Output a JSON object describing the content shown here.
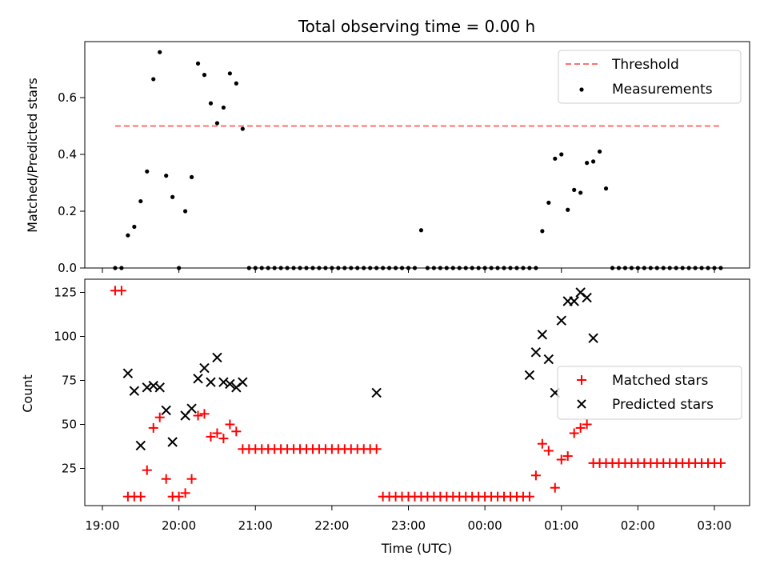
{
  "chart_data": [
    {
      "type": "scatter",
      "title": "Total observing time = 0.00 h",
      "xlabel": "",
      "ylabel": "Matched/Predicted stars",
      "xlim": [
        "19:00",
        "03:00"
      ],
      "ylim": [
        0,
        0.8
      ],
      "yticks": [
        "0.0",
        "0.2",
        "0.4",
        "0.6"
      ],
      "x_tick_labels_shown": false,
      "legend": {
        "placement": "top-right",
        "entries": [
          "Threshold",
          "Measurements"
        ]
      },
      "threshold": {
        "name": "Threshold",
        "value": 0.5,
        "x_start": "19:10",
        "x_end": "03:05",
        "color": "#ff7070"
      },
      "series": [
        {
          "name": "Measurements",
          "color": "#000000",
          "x": [
            "19:10",
            "19:15",
            "19:20",
            "19:25",
            "19:30",
            "19:35",
            "19:40",
            "19:45",
            "19:50",
            "19:55",
            "20:00",
            "20:05",
            "20:10",
            "20:15",
            "20:20",
            "20:25",
            "20:30",
            "20:35",
            "20:40",
            "20:45",
            "20:50",
            "20:55",
            "21:00",
            "21:05",
            "21:10",
            "21:15",
            "21:20",
            "21:25",
            "21:30",
            "21:35",
            "21:40",
            "21:45",
            "21:50",
            "21:55",
            "22:00",
            "22:05",
            "22:10",
            "22:15",
            "22:20",
            "22:25",
            "22:30",
            "22:35",
            "22:40",
            "22:45",
            "22:50",
            "22:55",
            "23:00",
            "23:05",
            "23:10",
            "23:15",
            "23:20",
            "23:25",
            "23:30",
            "23:35",
            "23:40",
            "23:45",
            "23:50",
            "23:55",
            "00:00",
            "00:05",
            "00:10",
            "00:15",
            "00:20",
            "00:25",
            "00:30",
            "00:35",
            "00:40",
            "00:45",
            "00:50",
            "00:55",
            "01:00",
            "01:05",
            "01:10",
            "01:15",
            "01:20",
            "01:25",
            "01:30",
            "01:35",
            "01:40",
            "01:45",
            "01:50",
            "01:55",
            "02:00",
            "02:05",
            "02:10",
            "02:15",
            "02:20",
            "02:25",
            "02:30",
            "02:35",
            "02:40",
            "02:45",
            "02:50",
            "02:55",
            "03:00",
            "03:05"
          ],
          "y": [
            0,
            0,
            0.115,
            0.145,
            0.235,
            0.34,
            0.665,
            0.76,
            0.325,
            0.25,
            0,
            0.2,
            0.32,
            0.72,
            0.68,
            0.58,
            0.51,
            0.565,
            0.685,
            0.65,
            0.49,
            0,
            0,
            0,
            0,
            0,
            0,
            0,
            0,
            0,
            0,
            0,
            0,
            0,
            0,
            0,
            0,
            0,
            0,
            0,
            0,
            0,
            0,
            0,
            0,
            0,
            0,
            0,
            0.133,
            0,
            0,
            0,
            0,
            0,
            0,
            0,
            0,
            0,
            0,
            0,
            0,
            0,
            0,
            0,
            0,
            0,
            0,
            0.13,
            0.23,
            0.385,
            0.4,
            0.205,
            0.275,
            0.265,
            0.37,
            0.375,
            0.41,
            0.28,
            0,
            0,
            0,
            0,
            0,
            0,
            0,
            0,
            0,
            0,
            0,
            0,
            0,
            0,
            0,
            0,
            0,
            0
          ]
        }
      ]
    },
    {
      "type": "scatter",
      "title": "",
      "xlabel": "Time (UTC)",
      "ylabel": "Count",
      "xlim": [
        "19:00",
        "03:00"
      ],
      "ylim": [
        3,
        132
      ],
      "xticks": [
        "19:00",
        "20:00",
        "21:00",
        "22:00",
        "23:00",
        "00:00",
        "01:00",
        "02:00",
        "03:00"
      ],
      "yticks": [
        "25",
        "50",
        "75",
        "100",
        "125"
      ],
      "legend": {
        "placement": "center-right",
        "entries": [
          "Matched stars",
          "Predicted stars"
        ]
      },
      "series": [
        {
          "name": "Matched stars",
          "marker": "plus",
          "color": "#ff0000",
          "x": [
            "19:10",
            "19:15",
            "19:20",
            "19:25",
            "19:30",
            "19:35",
            "19:40",
            "19:45",
            "19:50",
            "19:55",
            "20:00",
            "20:05",
            "20:10",
            "20:15",
            "20:20",
            "20:25",
            "20:30",
            "20:35",
            "20:40",
            "20:45",
            "20:50",
            "20:55",
            "21:00",
            "21:05",
            "21:10",
            "21:15",
            "21:20",
            "21:25",
            "21:30",
            "21:35",
            "21:40",
            "21:45",
            "21:50",
            "21:55",
            "22:00",
            "22:05",
            "22:10",
            "22:15",
            "22:20",
            "22:25",
            "22:30",
            "22:35",
            "22:40",
            "22:45",
            "22:50",
            "22:55",
            "23:00",
            "23:05",
            "23:10",
            "23:15",
            "23:20",
            "23:25",
            "23:30",
            "23:35",
            "23:40",
            "23:45",
            "23:50",
            "23:55",
            "00:00",
            "00:05",
            "00:10",
            "00:15",
            "00:20",
            "00:25",
            "00:30",
            "00:35",
            "00:40",
            "00:45",
            "00:50",
            "00:55",
            "01:00",
            "01:05",
            "01:10",
            "01:15",
            "01:20",
            "01:25",
            "01:30",
            "01:35",
            "01:40",
            "01:45",
            "01:50",
            "01:55",
            "02:00",
            "02:05",
            "02:10",
            "02:15",
            "02:20",
            "02:25",
            "02:30",
            "02:35",
            "02:40",
            "02:45",
            "02:50",
            "02:55",
            "03:00",
            "03:05"
          ],
          "y": [
            126,
            126,
            9,
            9,
            9,
            24,
            48,
            54,
            19,
            9,
            9,
            11,
            19,
            55,
            56,
            43,
            45,
            42,
            50,
            46,
            36,
            36,
            36,
            36,
            36,
            36,
            36,
            36,
            36,
            36,
            36,
            36,
            36,
            36,
            36,
            36,
            36,
            36,
            36,
            36,
            36,
            36,
            9,
            9,
            9,
            9,
            9,
            9,
            9,
            9,
            9,
            9,
            9,
            9,
            9,
            9,
            9,
            9,
            9,
            9,
            9,
            9,
            9,
            9,
            9,
            9,
            21,
            39,
            35,
            14,
            30,
            32,
            45,
            48,
            50,
            28,
            28,
            28,
            28,
            28,
            28,
            28,
            28,
            28,
            28,
            28,
            28,
            28,
            28,
            28,
            28,
            28,
            28,
            28,
            28,
            28
          ]
        },
        {
          "name": "Predicted stars",
          "marker": "x",
          "color": "#000000",
          "x": [
            "19:20",
            "19:25",
            "19:30",
            "19:35",
            "19:40",
            "19:45",
            "19:50",
            "19:55",
            "20:05",
            "20:10",
            "20:15",
            "20:20",
            "20:25",
            "20:30",
            "20:35",
            "20:40",
            "20:45",
            "20:50",
            "22:35",
            "00:35",
            "00:40",
            "00:45",
            "00:50",
            "00:55",
            "01:00",
            "01:05",
            "01:10",
            "01:15",
            "01:20",
            "01:25"
          ],
          "y": [
            79,
            69,
            38,
            71,
            72,
            71,
            58,
            40,
            55,
            59,
            76,
            82,
            74,
            88,
            74,
            73,
            71,
            74,
            68,
            78,
            91,
            101,
            87,
            68,
            109,
            120,
            120,
            125,
            122,
            99
          ]
        }
      ]
    }
  ]
}
